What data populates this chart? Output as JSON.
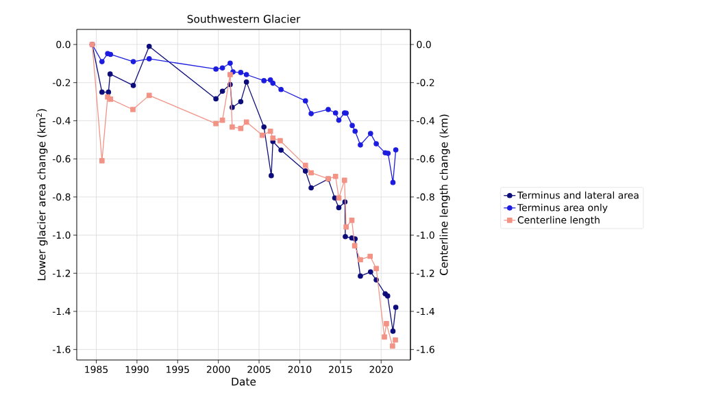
{
  "chart_data": {
    "type": "line",
    "title": "Southwestern Glacier",
    "xlabel": "Date",
    "ylabel": "Lower glacier area change (km$^{2}$)",
    "y2label": "Centerline length change (km)",
    "xlim": [
      1982.6,
      2023.6
    ],
    "xticks": [
      1985,
      1990,
      1995,
      2000,
      2005,
      2010,
      2015,
      2020
    ],
    "ylim": [
      -1.655,
      0.079
    ],
    "yticks": [
      {
        "value": 0,
        "label": "0.0"
      },
      -0.2,
      -0.4,
      -0.6,
      -0.8,
      {
        "value": -1,
        "label": "-1.0"
      },
      -1.2,
      -1.4,
      -1.6
    ],
    "y2lim": [
      -1.655,
      0.079
    ],
    "y2ticks": [
      {
        "value": 0,
        "label": "0.0"
      },
      -0.2,
      -0.4,
      -0.6,
      -0.8,
      {
        "value": -1,
        "label": "-1.0"
      },
      -1.2,
      -1.4,
      -1.6
    ],
    "grid": true,
    "legend": "right",
    "line_style": "solid",
    "series": [
      {
        "name": "Terminus and lateral area",
        "color": "#0c0c7a",
        "marker": "circle",
        "x": [
          1984.5,
          1985.7,
          1986.5,
          1986.7,
          1989.55,
          1991.5,
          1999.7,
          2000.5,
          2001.45,
          2001.7,
          2002.75,
          2003.45,
          2005.6,
          2006.5,
          2006.7,
          2007.7,
          2010.7,
          2011.4,
          2013.5,
          2014.3,
          2014.8,
          2015.55,
          2015.6,
          2016.4,
          2016.8,
          2017.45,
          2018.7,
          2019.4,
          2020.5,
          2020.8,
          2021.45,
          2021.8
        ],
        "values": [
          0.0,
          -0.25,
          -0.25,
          -0.155,
          -0.215,
          -0.01,
          -0.285,
          -0.245,
          -0.21,
          -0.33,
          -0.3,
          -0.197,
          -0.433,
          -0.688,
          -0.509,
          -0.554,
          -0.664,
          -0.752,
          -0.706,
          -0.805,
          -0.856,
          -0.826,
          -1.008,
          -1.015,
          -1.02,
          -1.215,
          -1.193,
          -1.235,
          -1.308,
          -1.319,
          -1.504,
          -1.379
        ]
      },
      {
        "name": "Terminus area only",
        "color": "#1c1ce0",
        "marker": "circle",
        "x": [
          1984.5,
          1985.7,
          1986.4,
          1986.75,
          1989.55,
          1991.5,
          1999.7,
          2000.5,
          2001.45,
          2001.8,
          2002.75,
          2003.45,
          2005.6,
          2006.4,
          2006.7,
          2007.7,
          2010.7,
          2011.4,
          2013.5,
          2014.4,
          2014.8,
          2015.5,
          2015.7,
          2016.45,
          2016.8,
          2017.45,
          2018.7,
          2019.4,
          2020.5,
          2020.85,
          2021.45,
          2021.8
        ],
        "values": [
          0.0,
          -0.09,
          -0.048,
          -0.052,
          -0.09,
          -0.075,
          -0.129,
          -0.123,
          -0.098,
          -0.144,
          -0.147,
          -0.158,
          -0.19,
          -0.186,
          -0.203,
          -0.236,
          -0.296,
          -0.363,
          -0.341,
          -0.359,
          -0.397,
          -0.359,
          -0.36,
          -0.425,
          -0.455,
          -0.527,
          -0.467,
          -0.521,
          -0.568,
          -0.571,
          -0.724,
          -0.553
        ]
      },
      {
        "name": "Centerline length",
        "color": "#f29386",
        "marker": "square",
        "axis": "y2",
        "x": [
          1984.5,
          1985.7,
          1986.4,
          1986.75,
          1989.5,
          1991.5,
          1999.7,
          2000.5,
          2001.45,
          2001.7,
          2002.75,
          2003.45,
          2005.4,
          2006.4,
          2006.7,
          2007.6,
          2010.7,
          2011.4,
          2013.5,
          2014.4,
          2014.8,
          2015.5,
          2015.7,
          2016.4,
          2016.75,
          2017.45,
          2018.65,
          2019.4,
          2020.4,
          2020.65,
          2021.4,
          2021.75
        ],
        "values": [
          0.0,
          -0.61,
          -0.275,
          -0.287,
          -0.341,
          -0.267,
          -0.415,
          -0.397,
          -0.158,
          -0.433,
          -0.44,
          -0.407,
          -0.476,
          -0.455,
          -0.491,
          -0.505,
          -0.634,
          -0.673,
          -0.704,
          -0.692,
          -0.805,
          -0.712,
          -0.957,
          -0.922,
          -1.056,
          -1.129,
          -1.111,
          -1.175,
          -1.534,
          -1.464,
          -1.582,
          -1.55
        ]
      }
    ]
  }
}
